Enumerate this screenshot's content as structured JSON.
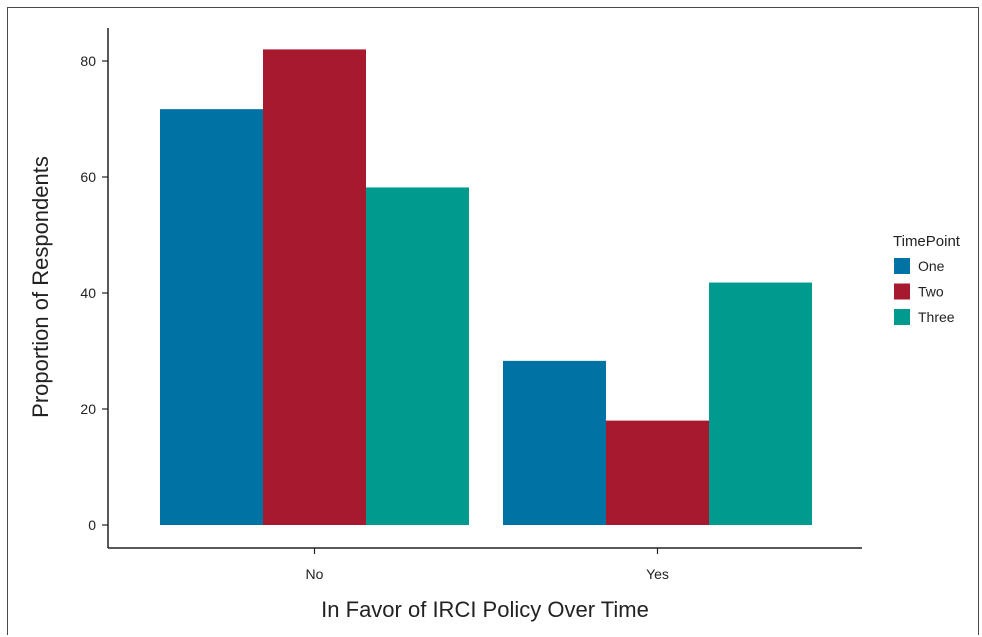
{
  "chart_data": {
    "type": "bar",
    "xlabel": "In Favor of IRCI Policy Over Time",
    "ylabel": "Proportion of Respondents",
    "categories": [
      "No",
      "Yes"
    ],
    "series": [
      {
        "name": "One",
        "color": "#0072a3",
        "values": [
          71.7,
          28.3
        ]
      },
      {
        "name": "Two",
        "color": "#a6192e",
        "values": [
          82.0,
          18.0
        ]
      },
      {
        "name": "Three",
        "color": "#009a8e",
        "values": [
          58.2,
          41.8
        ]
      }
    ],
    "ylim": [
      0,
      86
    ],
    "yticks": [
      0,
      20,
      40,
      60,
      80
    ],
    "grid": false,
    "legend": {
      "title": "TimePoint",
      "position": "right"
    }
  }
}
